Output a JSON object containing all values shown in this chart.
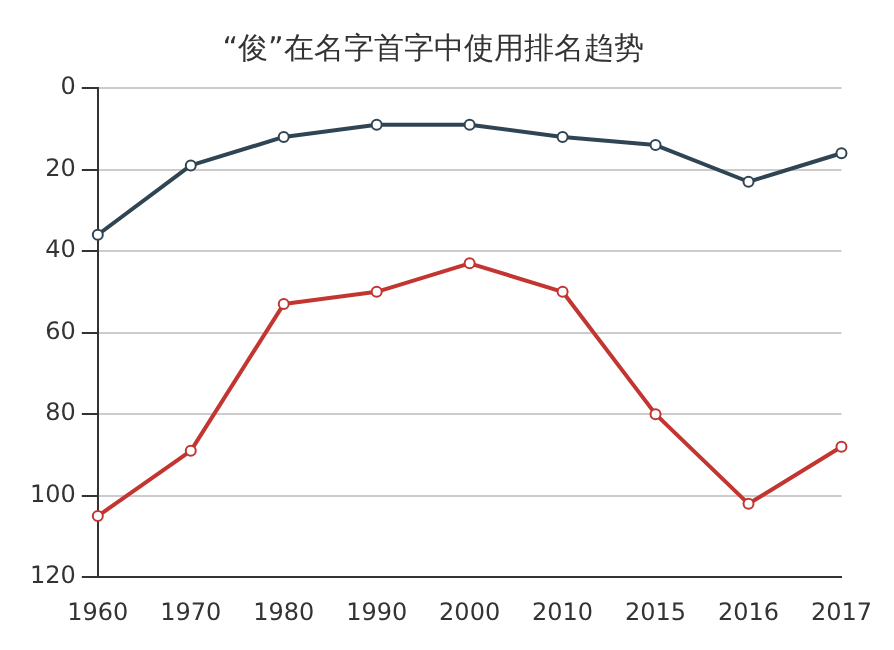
{
  "chart_data": {
    "type": "line",
    "title": "“俊”在名字首字中使用排名趋势",
    "categories": [
      "1960",
      "1970",
      "1980",
      "1990",
      "2000",
      "2010",
      "2015",
      "2016",
      "2017"
    ],
    "series": [
      {
        "color": "#2f4554",
        "values": [
          36,
          19,
          12,
          9,
          9,
          12,
          14,
          23,
          16
        ]
      },
      {
        "color": "#c23531",
        "values": [
          105,
          89,
          53,
          50,
          43,
          50,
          80,
          102,
          88
        ]
      }
    ],
    "ylim": [
      120,
      0
    ],
    "yticks": [
      0,
      20,
      40,
      60,
      80,
      100,
      120
    ],
    "grid": "y",
    "legend": false,
    "marker": "circle",
    "line_style": "solid"
  }
}
